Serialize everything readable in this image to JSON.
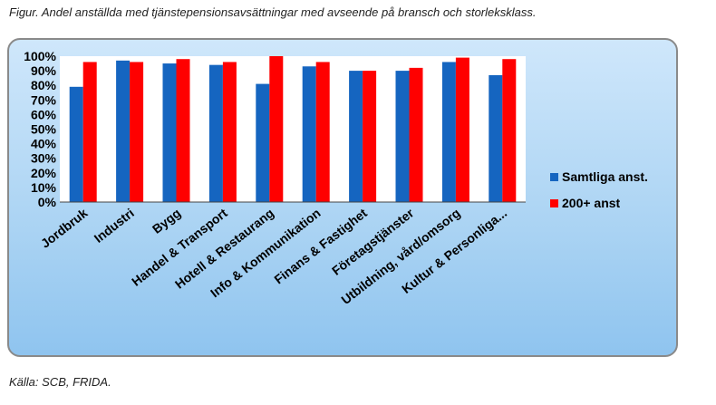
{
  "caption": "Figur. Andel anställda med tjänstepensionsavsättningar med avseende på bransch och storleksklass.",
  "source": "Källa: SCB, FRIDA.",
  "chart_data": {
    "type": "bar",
    "categories": [
      "Jordbruk",
      "Industri",
      "Bygg",
      "Handel & Transport",
      "Hotell & Restaurang",
      "Info & Kommunikation",
      "Finans & Fastighet",
      "Företagstjänster",
      "Utbildning, vård/omsorg",
      "Kultur & Personliga..."
    ],
    "series": [
      {
        "name": "Samtliga anst.",
        "color": "#1565c0",
        "values": [
          79,
          97,
          95,
          94,
          81,
          93,
          90,
          90,
          96,
          87
        ]
      },
      {
        "name": "200+ anst",
        "color": "#ff0000",
        "values": [
          96,
          96,
          98,
          96,
          100,
          96,
          90,
          92,
          99,
          98
        ]
      }
    ],
    "yticks": [
      "0%",
      "10%",
      "20%",
      "30%",
      "40%",
      "50%",
      "60%",
      "70%",
      "80%",
      "90%",
      "100%"
    ],
    "ylim": [
      0,
      100
    ],
    "legend_position": "right",
    "grid": false
  }
}
